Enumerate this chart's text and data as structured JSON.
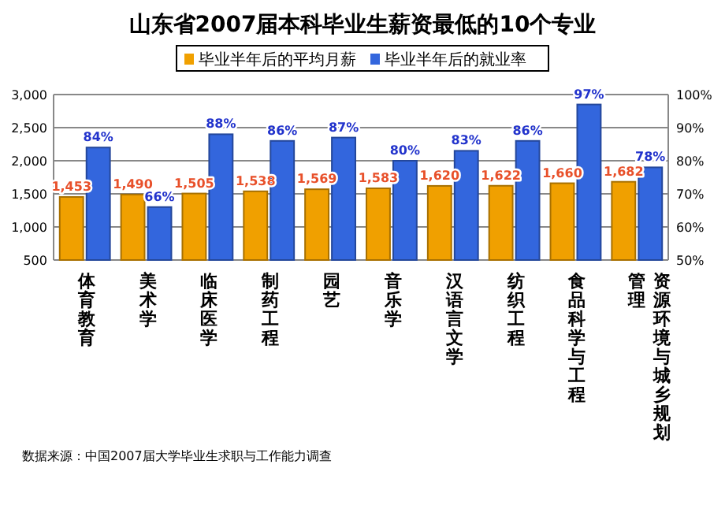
{
  "chart_data": {
    "type": "bar",
    "title": "山东省2007届本科毕业生薪资最低的10个专业",
    "categories": [
      "体育教育",
      "美术学",
      "临床医学",
      "制药工程",
      "园艺",
      "音乐学",
      "汉语言文学",
      "纺织工程",
      "食品科学与工程",
      "资源环境与城乡规划管理"
    ],
    "series": [
      {
        "name": "毕业半年后的平均月薪",
        "color": "#f0a000",
        "values": [
          1453,
          1490,
          1505,
          1538,
          1569,
          1583,
          1620,
          1622,
          1660,
          1682
        ],
        "value_labels": [
          "1,453",
          "1,490",
          "1,505",
          "1,538",
          "1,569",
          "1,583",
          "1,620",
          "1,622",
          "1,660",
          "1,682"
        ]
      },
      {
        "name": "毕业半年后的就业率",
        "color": "#3366dd",
        "axis": "y2",
        "values": [
          84,
          66,
          88,
          86,
          87,
          80,
          83,
          86,
          97,
          78
        ],
        "value_labels": [
          "84%",
          "66%",
          "88%",
          "86%",
          "87%",
          "80%",
          "83%",
          "86%",
          "97%",
          "78%"
        ]
      }
    ],
    "ylim": [
      500,
      3000
    ],
    "yticks": [
      {
        "value": 500,
        "label": "500"
      },
      {
        "value": 1000,
        "label": "1,000"
      },
      {
        "value": 1500,
        "label": "1,500"
      },
      {
        "value": 2000,
        "label": "2,000"
      },
      {
        "value": 2500,
        "label": "2,500"
      },
      {
        "value": 3000,
        "label": "3,000"
      }
    ],
    "y2lim": [
      50,
      100
    ],
    "y2ticks": [
      {
        "value": 50,
        "label": "50%"
      },
      {
        "value": 60,
        "label": "60%"
      },
      {
        "value": 70,
        "label": "70%"
      },
      {
        "value": 80,
        "label": "80%"
      },
      {
        "value": 90,
        "label": "90%"
      },
      {
        "value": 100,
        "label": "100%"
      }
    ],
    "grid": "y",
    "legend": "top",
    "annotations": [
      "数据来源：中国2007届大学毕业生求职与工作能力调查"
    ]
  }
}
